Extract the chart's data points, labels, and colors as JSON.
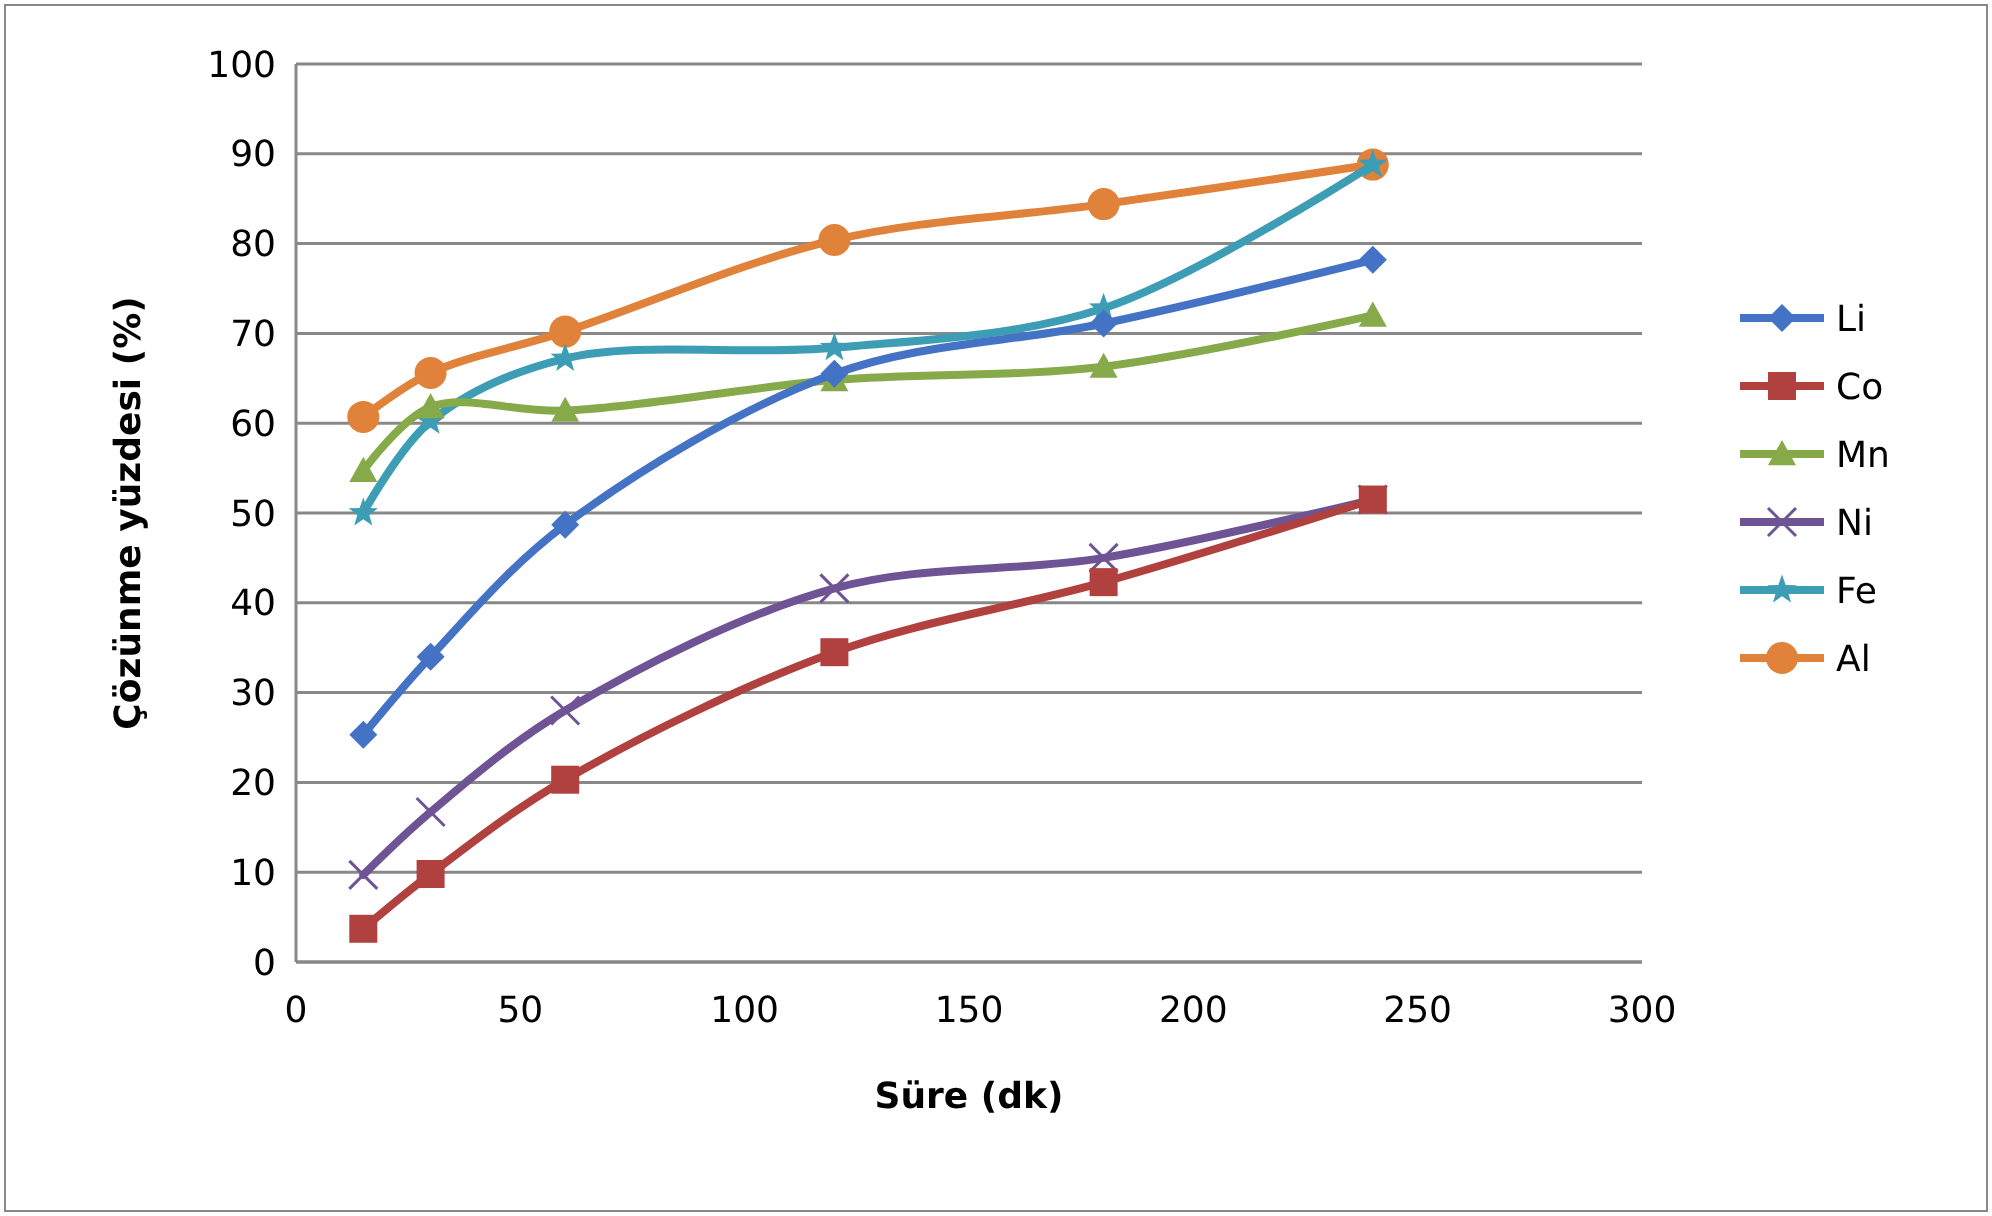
{
  "chart_data": {
    "type": "line",
    "xlabel": "Süre (dk)",
    "ylabel": "Çözünme yüzdesi (%)",
    "x": [
      15,
      30,
      60,
      120,
      180,
      240
    ],
    "xlim": [
      0,
      300
    ],
    "xticks": [
      0,
      50,
      100,
      150,
      200,
      250,
      300
    ],
    "ylim": [
      0,
      100
    ],
    "yticks": [
      0,
      10,
      20,
      30,
      40,
      50,
      60,
      70,
      80,
      90,
      100
    ],
    "grid": "y",
    "legend": "right",
    "series": [
      {
        "name": "Li",
        "color": "#4472c4",
        "marker": "diamond",
        "values": [
          25.3,
          34,
          48.7,
          65.5,
          71.1,
          78.2
        ]
      },
      {
        "name": "Co",
        "color": "#b0413e",
        "marker": "square",
        "values": [
          3.7,
          9.8,
          20.3,
          34.5,
          42.3,
          51.5
        ]
      },
      {
        "name": "Mn",
        "color": "#86a94a",
        "marker": "triangle",
        "values": [
          54.7,
          61.8,
          61.4,
          64.8,
          66.3,
          72
        ]
      },
      {
        "name": "Ni",
        "color": "#6f5495",
        "marker": "cross",
        "values": [
          9.7,
          16.7,
          28,
          41.6,
          45,
          51.5
        ]
      },
      {
        "name": "Fe",
        "color": "#3d9db5",
        "marker": "star",
        "values": [
          50,
          60.2,
          67.2,
          68.4,
          72.8,
          88.8
        ]
      },
      {
        "name": "Al",
        "color": "#e0823a",
        "marker": "circle",
        "values": [
          60.7,
          65.6,
          70.2,
          80.4,
          84.4,
          88.8
        ]
      }
    ]
  }
}
